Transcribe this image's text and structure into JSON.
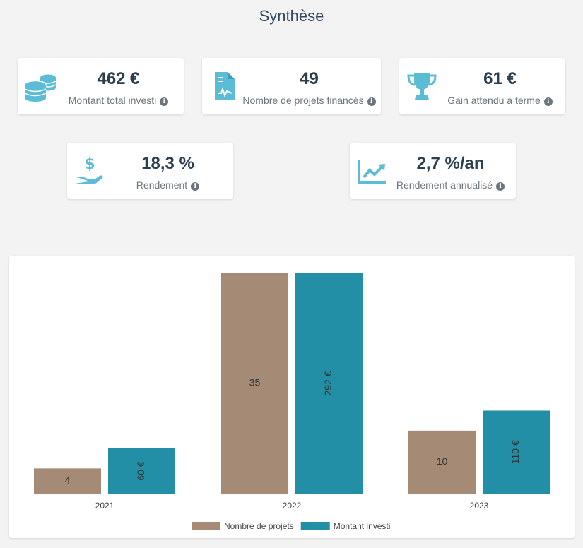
{
  "page": {
    "title": "Synthèse"
  },
  "stats": [
    {
      "value": "462 €",
      "label": "Montant total investi",
      "icon": "coins-icon"
    },
    {
      "value": "49",
      "label": "Nombre de projets financés",
      "icon": "document-icon"
    },
    {
      "value": "61 €",
      "label": "Gain attendu à terme",
      "icon": "trophy-icon"
    },
    {
      "value": "18,3 %",
      "label": "Rendement",
      "icon": "hand-dollar-icon"
    },
    {
      "value": "2,7 %/an",
      "label": "Rendement annualisé",
      "icon": "chart-line-icon"
    }
  ],
  "info_glyph": "i",
  "colors": {
    "accent": "#5bbcd6",
    "projets": "#a58b76",
    "montant": "#238fa6"
  },
  "chart_data": {
    "type": "bar",
    "categories": [
      "2021",
      "2022",
      "2023"
    ],
    "series": [
      {
        "name": "Nombre de projets",
        "values": [
          4,
          35,
          10
        ],
        "labels": [
          "4",
          "35",
          "10"
        ],
        "color": "#a58b76"
      },
      {
        "name": "Montant investi",
        "values": [
          60,
          292,
          110
        ],
        "labels": [
          "60 €",
          "292 €",
          "110 €"
        ],
        "color": "#238fa6"
      }
    ],
    "legend_position": "bottom",
    "grid": false
  }
}
